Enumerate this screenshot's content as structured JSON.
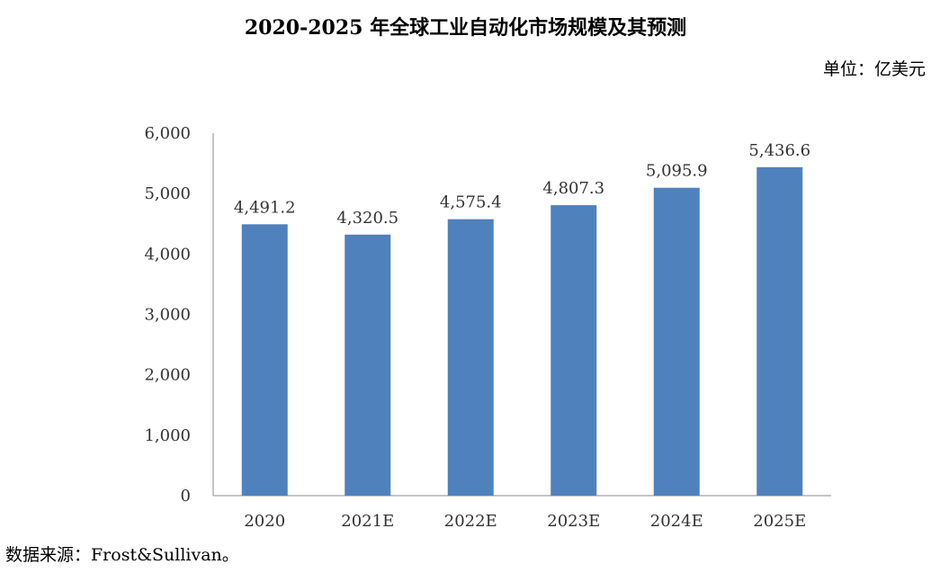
{
  "title": "2020-2025 年全球工业自动化市场规模及其预测",
  "unit_label": "单位：亿美元",
  "source_note": "数据来源：Frost&Sullivan。",
  "chart_data": {
    "type": "bar",
    "title": "2020-2025 年全球工业自动化市场规模及其预测",
    "xlabel": "",
    "ylabel": "",
    "categories": [
      "2020",
      "2021E",
      "2022E",
      "2023E",
      "2024E",
      "2025E"
    ],
    "values": [
      4491.2,
      4320.5,
      4575.4,
      4807.3,
      5095.9,
      5436.6
    ],
    "value_labels": [
      "4,491.2",
      "4,320.5",
      "4,575.4",
      "4,807.3",
      "5,095.9",
      "5,436.6"
    ],
    "yticks": [
      0,
      1000,
      2000,
      3000,
      4000,
      5000,
      6000
    ],
    "ytick_labels": [
      "0",
      "1,000",
      "2,000",
      "3,000",
      "4,000",
      "5,000",
      "6,000"
    ],
    "ylim": [
      0,
      6000
    ],
    "grid": false,
    "legend": "none",
    "bar_color": "#4F81BD"
  }
}
